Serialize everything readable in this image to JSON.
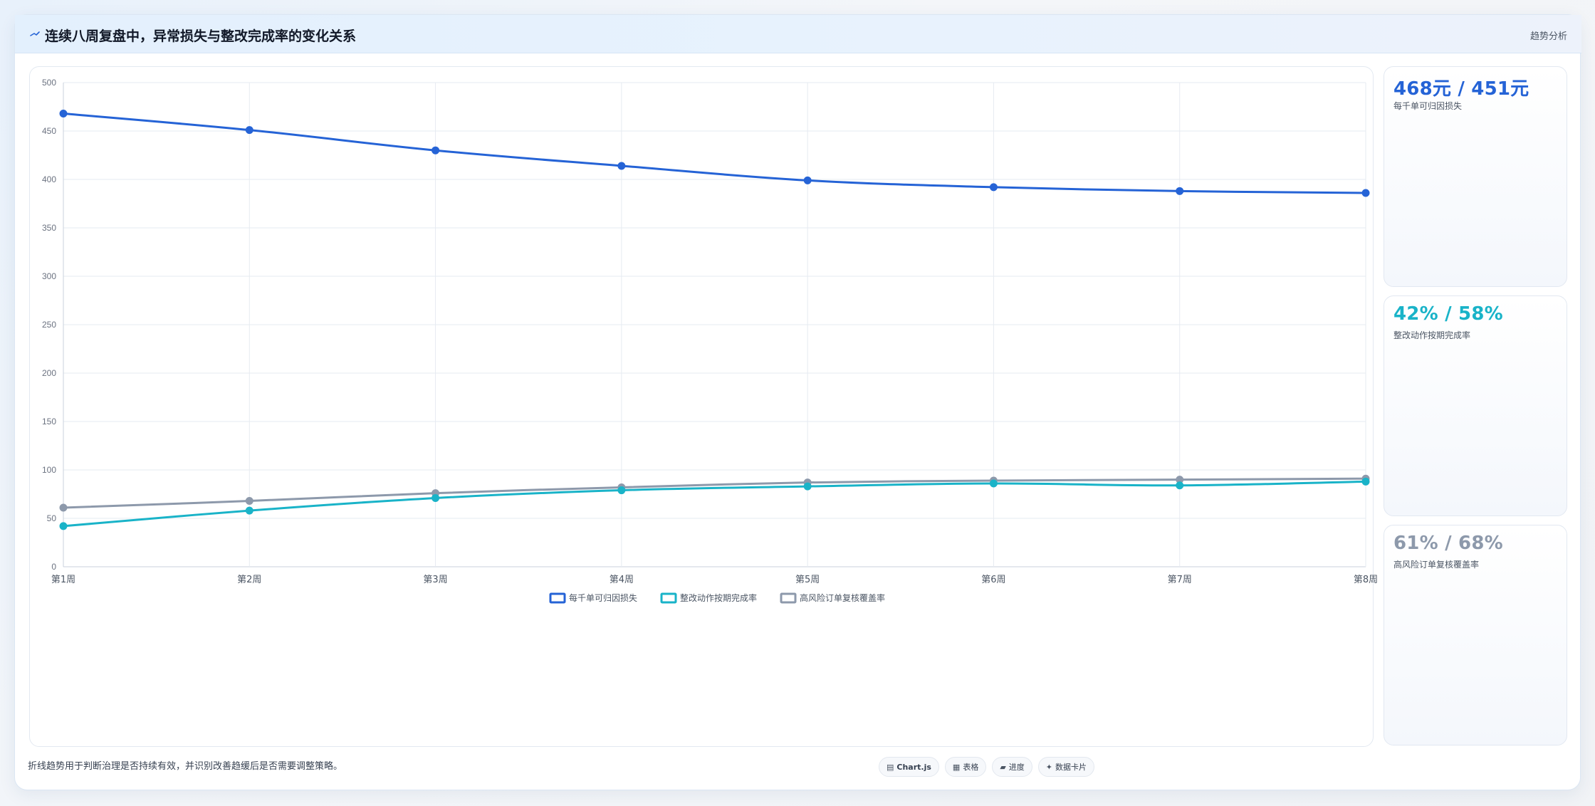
{
  "header": {
    "title": "连续八周复盘中，异常损失与整改完成率的变化关系",
    "tag": "趋势分析"
  },
  "side_cards": [
    {
      "value": "468元 / 451元",
      "label": "每千单可归因损失",
      "color": "#2563d6"
    },
    {
      "value": "42% / 58%",
      "label": "整改动作按期完成率",
      "color": "#19b3c8"
    },
    {
      "value": "61% / 68%",
      "label": "高风险订单复核覆盖率",
      "color": "#8d99ab"
    }
  ],
  "footer": {
    "note": "折线趋势用于判断治理是否持续有效，并识别改善趋缓后是否需要调整策略。",
    "chips": [
      {
        "icon": "chart-icon",
        "glyph": "▤",
        "label": "Chart.js"
      },
      {
        "icon": "table-icon",
        "glyph": "▦",
        "label": "表格"
      },
      {
        "icon": "progress-icon",
        "glyph": "▰",
        "label": "进度"
      },
      {
        "icon": "sparkle-icon",
        "glyph": "✦",
        "label": "数据卡片"
      }
    ]
  },
  "chart_data": {
    "type": "line",
    "categories": [
      "第1周",
      "第2周",
      "第3周",
      "第4周",
      "第5周",
      "第6周",
      "第7周",
      "第8周"
    ],
    "ylim": [
      0,
      500
    ],
    "yticks": [
      0,
      50,
      100,
      150,
      200,
      250,
      300,
      350,
      400,
      450,
      500
    ],
    "grid": true,
    "legend_position": "bottom",
    "series": [
      {
        "name": "每千单可归因损失",
        "color": "#2563d6",
        "values": [
          468,
          451,
          430,
          414,
          399,
          392,
          388,
          386
        ]
      },
      {
        "name": "整改动作按期完成率",
        "color": "#19b3c8",
        "values": [
          42,
          58,
          71,
          79,
          83,
          86,
          84,
          88
        ]
      },
      {
        "name": "高风险订单复核覆盖率",
        "color": "#8d99ab",
        "values": [
          61,
          68,
          76,
          82,
          87,
          89,
          90,
          91
        ]
      }
    ]
  }
}
